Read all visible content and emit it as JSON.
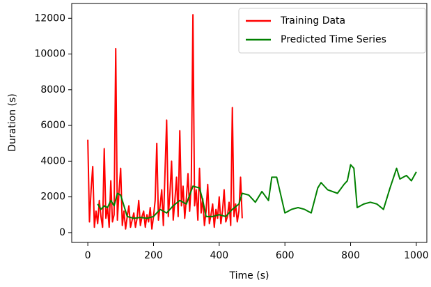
{
  "chart_data": {
    "type": "line",
    "xlabel": "Time (s)",
    "ylabel": "Duration (s)",
    "xlim": [
      -49,
      1032
    ],
    "ylim": [
      -550,
      12830
    ],
    "xticks": [
      0,
      200,
      400,
      600,
      800,
      1000
    ],
    "yticks": [
      0,
      2000,
      4000,
      6000,
      8000,
      10000,
      12000
    ],
    "legend": "upper right",
    "grid": false,
    "series": [
      {
        "name": "Training Data",
        "color": "#ff0000",
        "x": [
          0,
          5,
          10,
          15,
          20,
          25,
          30,
          35,
          40,
          45,
          50,
          55,
          60,
          65,
          70,
          75,
          80,
          85,
          90,
          95,
          100,
          105,
          110,
          115,
          120,
          125,
          130,
          135,
          140,
          145,
          150,
          155,
          160,
          165,
          170,
          175,
          180,
          185,
          190,
          195,
          200,
          205,
          210,
          215,
          220,
          225,
          230,
          235,
          240,
          245,
          250,
          255,
          260,
          265,
          270,
          275,
          280,
          285,
          290,
          295,
          300,
          305,
          310,
          315,
          320,
          325,
          330,
          335,
          340,
          345,
          350,
          355,
          360,
          365,
          370,
          375,
          380,
          385,
          390,
          395,
          400,
          405,
          410,
          415,
          420,
          425,
          430,
          435,
          440,
          445,
          450,
          455,
          460,
          465,
          470
        ],
        "values": [
          5200,
          600,
          2400,
          3700,
          300,
          1200,
          500,
          1800,
          900,
          300,
          4700,
          800,
          1400,
          300,
          2900,
          600,
          1000,
          10300,
          700,
          2300,
          3600,
          400,
          1200,
          200,
          900,
          1500,
          300,
          700,
          1100,
          300,
          800,
          1800,
          400,
          900,
          1200,
          300,
          1000,
          600,
          1400,
          200,
          900,
          1800,
          5000,
          700,
          1500,
          2400,
          400,
          3400,
          6300,
          900,
          2200,
          4000,
          700,
          1800,
          3100,
          900,
          5700,
          1500,
          2600,
          800,
          1900,
          3300,
          1200,
          2800,
          12200,
          1500,
          2400,
          700,
          3600,
          1100,
          1900,
          400,
          1200,
          2700,
          500,
          1000,
          1600,
          300,
          1300,
          800,
          2000,
          500,
          1200,
          2400,
          600,
          900,
          1700,
          400,
          7000,
          900,
          1600,
          600,
          1200,
          3100,
          800
        ]
      },
      {
        "name": "Predicted Time Series",
        "color": "#008000",
        "x": [
          30,
          40,
          50,
          60,
          70,
          80,
          90,
          100,
          110,
          120,
          140,
          160,
          180,
          200,
          220,
          240,
          260,
          280,
          300,
          320,
          340,
          350,
          360,
          380,
          400,
          420,
          440,
          460,
          470,
          490,
          510,
          530,
          550,
          560,
          575,
          590,
          600,
          620,
          640,
          660,
          680,
          700,
          710,
          730,
          760,
          780,
          790,
          800,
          810,
          820,
          840,
          860,
          880,
          900,
          920,
          940,
          950,
          970,
          985,
          1000
        ],
        "values": [
          1600,
          1300,
          1500,
          1400,
          1800,
          1500,
          2200,
          2100,
          1500,
          900,
          800,
          850,
          800,
          900,
          1300,
          1100,
          1500,
          1800,
          1600,
          2600,
          2500,
          1800,
          900,
          900,
          1000,
          900,
          1300,
          1600,
          2200,
          2100,
          1700,
          2300,
          1800,
          3100,
          3100,
          1900,
          1100,
          1300,
          1400,
          1300,
          1100,
          2500,
          2800,
          2400,
          2200,
          2700,
          2900,
          3800,
          3600,
          1400,
          1600,
          1700,
          1600,
          1300,
          2500,
          3600,
          3000,
          3200,
          2900,
          3400
        ]
      }
    ]
  }
}
